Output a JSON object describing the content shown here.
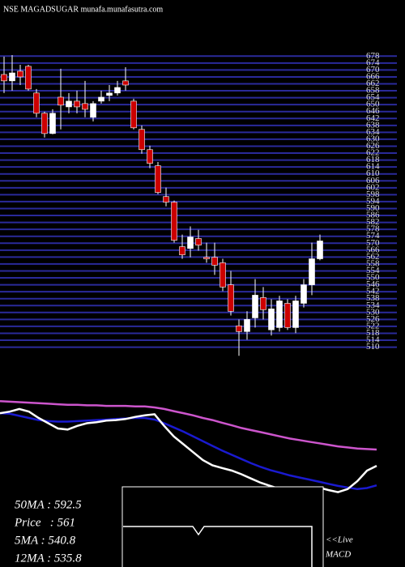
{
  "chart_data": [
    {
      "type": "candlestick",
      "title": "NSE MAGADSUGAR munafa.munafasutra.com",
      "open": [
        667.4,
        663.7,
        669.3,
        672.1,
        656.7,
        645,
        633.3,
        654.3,
        648.7,
        652,
        650.6,
        642.7,
        652,
        655.3,
        656.7,
        663.7,
        652,
        635.7,
        624,
        614.7,
        596.9,
        593.7,
        568,
        567,
        572.7,
        561.9,
        561.9,
        558.7,
        546,
        522.3,
        519,
        526.9,
        538.6,
        520,
        521.3,
        535.3,
        521.3,
        535.3,
        546,
        561
      ],
      "high": [
        677.7,
        678.6,
        673,
        673,
        659,
        645.9,
        647.3,
        670.7,
        656.7,
        658.1,
        663.7,
        652,
        658.1,
        661.3,
        663.7,
        671.6,
        653.4,
        638,
        626.3,
        616.9,
        602.1,
        594.6,
        575,
        579.7,
        577.7,
        570.3,
        570.3,
        561,
        554,
        526,
        530.7,
        549.3,
        544.7,
        537.7,
        539.7,
        537.7,
        539.7,
        549.3,
        570.3,
        575
      ],
      "low": [
        656.7,
        658.1,
        661.3,
        658.1,
        642.7,
        631,
        632.9,
        635.7,
        645,
        645,
        642.7,
        640.3,
        650.6,
        652,
        655.3,
        658.1,
        635.7,
        621.7,
        613.3,
        598.3,
        591.3,
        570.3,
        561,
        561.9,
        565.7,
        558.7,
        551.7,
        542.3,
        528.3,
        505,
        514.3,
        521.3,
        526,
        516.7,
        519,
        519.9,
        518.1,
        532.9,
        540,
        560.1
      ],
      "close": [
        663.7,
        668.3,
        666,
        659,
        645,
        633.3,
        645,
        649.7,
        652,
        648.7,
        647.3,
        650.6,
        654.3,
        656.7,
        659.9,
        661.3,
        636.6,
        624,
        616.1,
        599.3,
        593.7,
        571.7,
        563.3,
        573.6,
        568.9,
        561,
        557.3,
        544.7,
        530.7,
        519,
        526,
        540,
        531.6,
        532.1,
        536.7,
        521.3,
        536.7,
        546,
        561,
        571.3
      ],
      "up_color": "#ffffff",
      "down_color": "#cc0000",
      "grid_color": "#2a2a9a",
      "ylim": [
        507,
        680
      ],
      "yticks": [
        510,
        514,
        518,
        522,
        526,
        530,
        534,
        538,
        542,
        546,
        550,
        554,
        558,
        562,
        566,
        570,
        574,
        578,
        582,
        586,
        590,
        594,
        598,
        602,
        606,
        610,
        614,
        618,
        622,
        626,
        630,
        634,
        638,
        642,
        646,
        650,
        654,
        658,
        662,
        666,
        670,
        674,
        678
      ],
      "grid": true
    },
    {
      "type": "line",
      "ylim": [
        500,
        700
      ],
      "series": [
        {
          "name": "50MA",
          "color": "#cc55cc",
          "values": [
            692,
            691,
            690,
            689,
            688,
            687,
            686,
            685,
            685,
            684,
            684,
            683,
            683,
            683,
            682,
            682,
            680,
            677,
            673,
            669,
            665,
            660,
            656,
            651,
            646,
            641,
            637,
            633,
            629,
            625,
            621,
            618,
            615,
            612,
            609,
            606,
            604,
            602,
            601,
            600
          ]
        },
        {
          "name": "12MA",
          "color": "#1a1ad0",
          "values": [
            669,
            668,
            664,
            660,
            656,
            654,
            653,
            653,
            654,
            655,
            656,
            657,
            658,
            659,
            660,
            660,
            657,
            650,
            642,
            634,
            625,
            616,
            607,
            598,
            590,
            582,
            574,
            567,
            561,
            556,
            551,
            547,
            543,
            539,
            535,
            531,
            528,
            525,
            527,
            532
          ]
        },
        {
          "name": "Price",
          "color": "#ffffff",
          "values": [
            669,
            672,
            677,
            672,
            660,
            650,
            640,
            638,
            645,
            650,
            652,
            655,
            656,
            658,
            662,
            665,
            667,
            645,
            625,
            610,
            595,
            580,
            570,
            565,
            560,
            553,
            545,
            537,
            531,
            525,
            522,
            520,
            525,
            528,
            523,
            519,
            525,
            540,
            560,
            569
          ]
        }
      ],
      "annotations": [
        "50MA : 592.5",
        "Price   : 561",
        "5MA : 540.8",
        "12MA : 535.8"
      ],
      "macd_labels": [
        "<<Live",
        "MACD"
      ]
    }
  ]
}
